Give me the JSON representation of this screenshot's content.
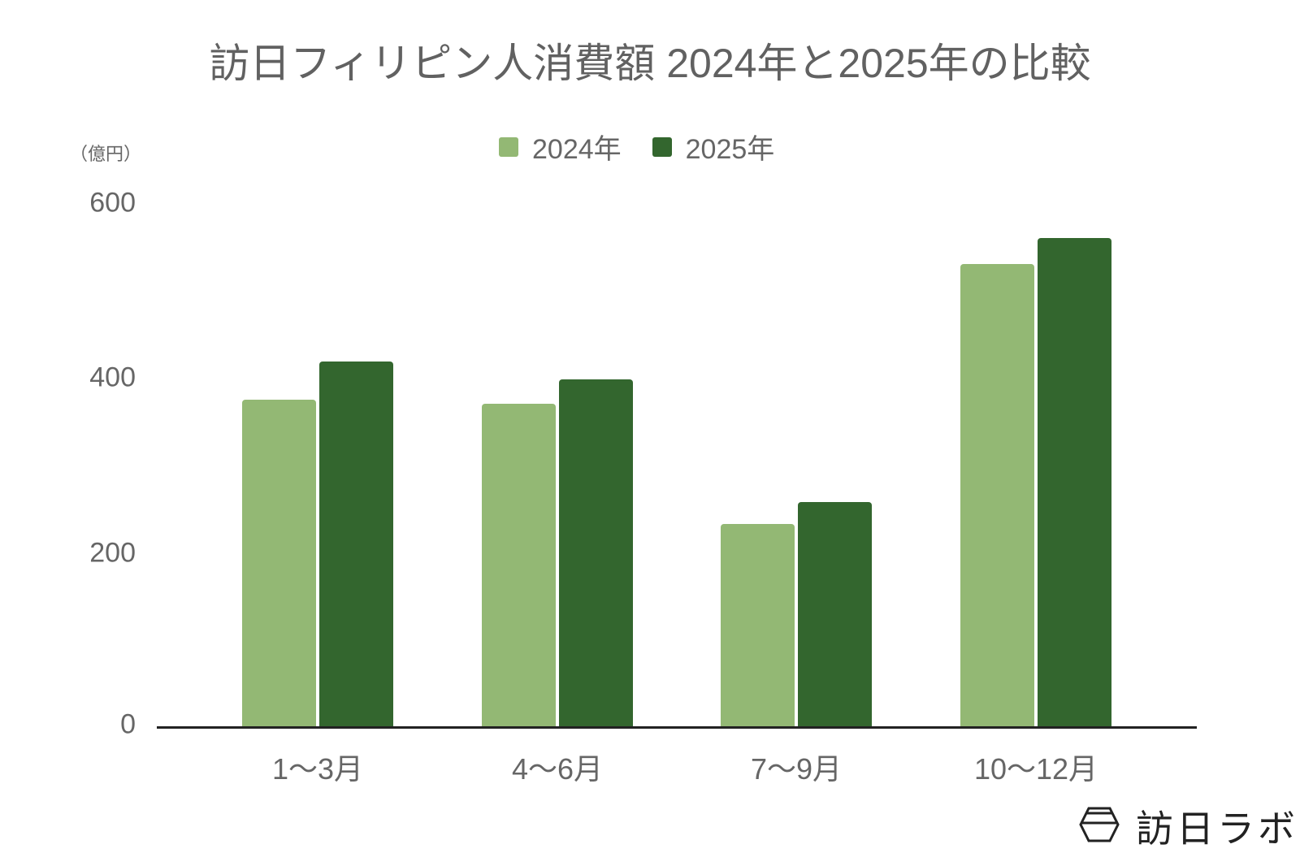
{
  "chart_data": {
    "type": "bar",
    "title": "訪日フィリピン人消費額 2024年と2025年の比較",
    "xlabel": "",
    "ylabel": "（億円）",
    "categories": [
      "1〜3月",
      "4〜6月",
      "7〜9月",
      "10〜12月"
    ],
    "series": [
      {
        "name": "2024年",
        "color": "#93b874",
        "values": [
          375,
          370,
          233,
          530
        ]
      },
      {
        "name": "2025年",
        "color": "#33662e",
        "values": [
          419,
          398,
          258,
          560
        ]
      }
    ],
    "ylim": [
      0,
      600
    ],
    "yticks": [
      0,
      200,
      400,
      600
    ],
    "grid": false,
    "legend_position": "top"
  },
  "labels": {
    "title": "訪日フィリピン人消費額 2024年と2025年の比較",
    "unit": "（億円）",
    "legend": [
      "2024年",
      "2025年"
    ],
    "yticks": [
      "600",
      "400",
      "200",
      "0"
    ],
    "xticks": [
      "1〜3月",
      "4〜6月",
      "7〜9月",
      "10〜12月"
    ],
    "watermark": "訪日ラボ"
  },
  "colors": {
    "series_2024": "#93b874",
    "series_2025": "#33662e",
    "text": "#666666",
    "axis": "#222222"
  },
  "icons": {
    "logo": "hexagon-bowl-icon"
  }
}
